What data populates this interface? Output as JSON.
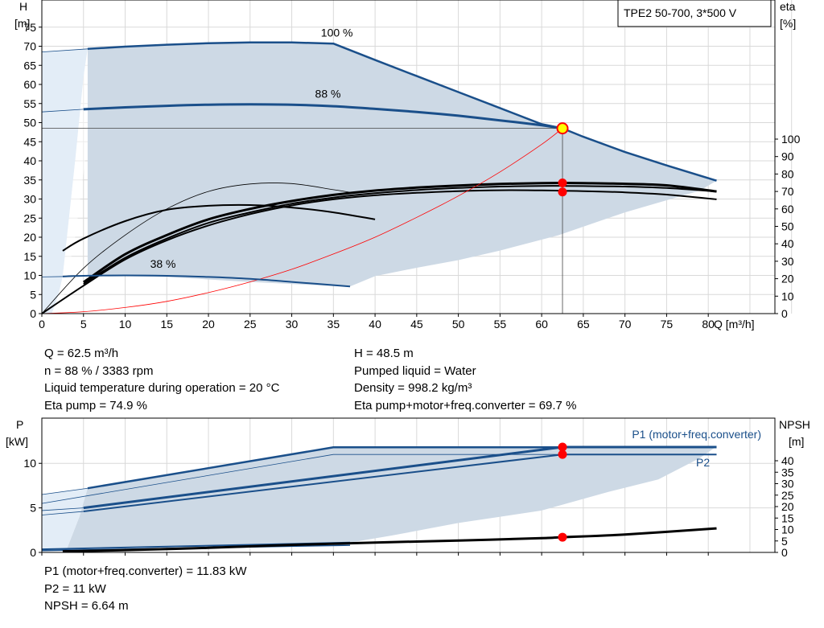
{
  "chart_data": [
    {
      "type": "line",
      "title": "TPE2 50-700, 3*500 V",
      "xlabel": "Q [m³/h]",
      "ylabel_left": [
        "H",
        "[m]"
      ],
      "ylabel_right": [
        "eta",
        "[%]"
      ],
      "xlim": [
        0,
        88
      ],
      "ylim": [
        0,
        80
      ],
      "eta_lim": [
        0,
        100
      ],
      "x_ticks": [
        0,
        5,
        10,
        15,
        20,
        25,
        30,
        35,
        40,
        45,
        50,
        55,
        60,
        65,
        70,
        75,
        80
      ],
      "y_ticks": [
        0,
        5,
        10,
        15,
        20,
        25,
        30,
        35,
        40,
        45,
        50,
        55,
        60,
        65,
        70,
        75
      ],
      "eta_ticks": [
        0,
        10,
        20,
        30,
        40,
        50,
        60,
        70,
        80,
        90,
        100
      ],
      "grid": true,
      "colors": {
        "curve": "#1a4f8a",
        "envelope": "#cdd9e5",
        "lowflow": "#e3edf7",
        "system": "#ff0000",
        "eta": "#000000",
        "point": "#ff0000",
        "duty": "#ffff00"
      },
      "series": [
        {
          "label": "100 %",
          "role": "head",
          "x": [
            5.5,
            10,
            15,
            20,
            25,
            30,
            35,
            40,
            45,
            50,
            55,
            60,
            62.5,
            65,
            70,
            75,
            81
          ],
          "y": [
            69.3,
            69.9,
            70.4,
            70.8,
            71.0,
            71.0,
            70.7,
            66.4,
            62.2,
            58.0,
            53.8,
            49.6,
            48.5,
            46.3,
            42.3,
            38.8,
            34.8
          ]
        },
        {
          "label": "88 %",
          "role": "head",
          "x": [
            5,
            10,
            15,
            20,
            25,
            30,
            35,
            40,
            45,
            50,
            55,
            60,
            62.5
          ],
          "y": [
            53.5,
            54.0,
            54.4,
            54.7,
            54.8,
            54.7,
            54.3,
            53.6,
            52.8,
            51.8,
            50.6,
            49.3,
            48.5
          ]
        },
        {
          "label": "38 %",
          "role": "head",
          "x": [
            2.5,
            5,
            10,
            15,
            20,
            25,
            30,
            37
          ],
          "y": [
            9.7,
            9.9,
            10.0,
            9.9,
            9.6,
            9.1,
            8.3,
            7.1
          ]
        },
        {
          "label": "",
          "role": "system",
          "x": [
            0,
            5,
            10,
            15,
            20,
            25,
            30,
            35,
            40,
            45,
            50,
            55,
            60,
            62.5
          ],
          "y": [
            0,
            0.5,
            1.6,
            3.2,
            5.5,
            8.3,
            11.6,
            15.6,
            20.0,
            25.2,
            30.8,
            37.1,
            44.3,
            48.5
          ]
        },
        {
          "label": "",
          "role": "eta",
          "x": [
            0,
            5,
            10,
            15,
            20,
            25,
            30,
            35,
            40,
            45,
            50,
            55,
            60,
            62.5,
            65,
            70,
            75,
            81
          ],
          "eta": [
            0,
            16,
            31,
            42,
            50.5,
            57,
            62,
            65.5,
            67.8,
            69.2,
            70.2,
            70.7,
            70.6,
            70.4,
            70.2,
            69.5,
            68.2,
            65.5
          ]
        },
        {
          "label": "",
          "role": "eta",
          "x": [
            5,
            10,
            15,
            20,
            25,
            30,
            35,
            40,
            45,
            50,
            55,
            60,
            62.5,
            65,
            70,
            75,
            81
          ],
          "eta": [
            17,
            32,
            43,
            52,
            58,
            63,
            66.5,
            69,
            70.8,
            72,
            72.8,
            73.2,
            73.2,
            73.1,
            72.8,
            72,
            70
          ]
        },
        {
          "label": "",
          "role": "eta",
          "x": [
            5,
            10,
            15,
            20,
            25,
            30,
            35,
            40,
            45,
            50,
            55,
            60,
            62.5,
            65,
            70,
            75,
            81
          ],
          "eta": [
            18,
            34,
            45,
            54,
            60,
            64.5,
            68,
            70.5,
            72.2,
            73.4,
            74.3,
            74.8,
            74.9,
            74.8,
            74.4,
            73.5,
            70
          ]
        },
        {
          "label": "",
          "role": "eta",
          "x": [
            2.5,
            5,
            10,
            15,
            20,
            25,
            30,
            35,
            40
          ],
          "eta": [
            36,
            43,
            53,
            59.5,
            61.8,
            62.2,
            60.8,
            58.0,
            54.0
          ]
        },
        {
          "label": "",
          "role": "eta-thin",
          "x": [
            0,
            5,
            10,
            15,
            20,
            25,
            30,
            35,
            37
          ],
          "eta": [
            0,
            26,
            45,
            60,
            70,
            74.3,
            74.5,
            71.0,
            69.5
          ]
        }
      ],
      "duty_point": {
        "x": 62.5,
        "y": 48.5
      },
      "eta_points": [
        69.7,
        74.9
      ],
      "annotations": [
        "100 %",
        "88 %",
        "38 %"
      ]
    },
    {
      "type": "line",
      "ylabel_left": [
        "P",
        "[kW]"
      ],
      "ylabel_right": [
        "NPSH",
        "[m]"
      ],
      "xlim": [
        0,
        88
      ],
      "ylim": [
        0,
        14
      ],
      "npsh_lim": [
        0,
        50
      ],
      "y_ticks": [
        0,
        5,
        10
      ],
      "npsh_ticks": [
        0,
        5,
        10,
        15,
        20,
        25,
        30,
        35,
        40
      ],
      "grid": true,
      "legend": [
        "P1 (motor+freq.converter)",
        "P2"
      ],
      "series": [
        {
          "label": "P1 (motor+freq.converter)",
          "role": "power",
          "x": [
            5.5,
            35,
            62.5,
            81
          ],
          "y": [
            7.2,
            11.8,
            11.9,
            11.9
          ]
        },
        {
          "label": "P2",
          "role": "power",
          "x": [
            5,
            62.5,
            81
          ],
          "y": [
            5.0,
            11.83,
            11.83
          ]
        },
        {
          "label": "",
          "role": "power-88-p2",
          "x": [
            5,
            62.5,
            81
          ],
          "y": [
            4.6,
            11.0,
            11.0
          ]
        },
        {
          "label": "",
          "role": "power-thin",
          "x": [
            0,
            35,
            62.5,
            81
          ],
          "y": [
            5.5,
            11.0,
            11.0,
            11.0
          ]
        },
        {
          "label": "",
          "role": "power-low",
          "x": [
            0,
            37
          ],
          "y": [
            0.35,
            1.1
          ]
        },
        {
          "label": "",
          "role": "npsh",
          "x": [
            2.5,
            10,
            20,
            30,
            40,
            50,
            60,
            62.5,
            70,
            81
          ],
          "npsh": [
            0.5,
            1.0,
            2.0,
            3.3,
            4.3,
            5.2,
            6.2,
            6.64,
            7.8,
            10.5
          ]
        }
      ],
      "points_y": [
        11.83,
        11.0
      ],
      "npsh_point": 6.64
    }
  ],
  "info_top_left": [
    "Q = 62.5 m³/h",
    "n = 88 % / 3383 rpm",
    "Liquid temperature during operation = 20 °C",
    "Eta pump = 74.9 %"
  ],
  "info_top_right": [
    "H = 48.5 m",
    "Pumped liquid = Water",
    "Density = 998.2 kg/m³",
    "Eta pump+motor+freq.converter = 69.7 %"
  ],
  "info_bottom": [
    "P1 (motor+freq.converter) = 11.83 kW",
    "P2 = 11 kW",
    "NPSH = 6.64 m"
  ]
}
